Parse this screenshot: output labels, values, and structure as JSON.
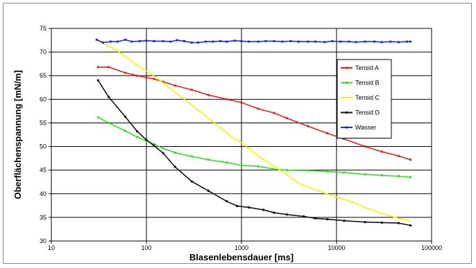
{
  "chart_data": {
    "type": "line",
    "title": "",
    "xlabel": "Blasenlebensdauer [ms]",
    "ylabel": "Oberflächenspannung [mN/m]",
    "xscale": "log",
    "xlim": [
      10,
      100000
    ],
    "ylim": [
      30,
      75
    ],
    "x_ticks": [
      "10",
      "100",
      "1000",
      "10000",
      "100000"
    ],
    "y_ticks": [
      "30",
      "35",
      "40",
      "45",
      "50",
      "55",
      "60",
      "65",
      "70",
      "75"
    ],
    "grid": "horizontal",
    "legend_position": "right",
    "series": [
      {
        "name": "Tensid A",
        "color": "#e8201c",
        "marker": true,
        "points": [
          [
            31,
            66.8
          ],
          [
            40,
            66.8
          ],
          [
            60,
            65.6
          ],
          [
            80,
            65.0
          ],
          [
            100,
            64.6
          ],
          [
            120,
            64.3
          ],
          [
            150,
            63.7
          ],
          [
            200,
            62.9
          ],
          [
            300,
            62.0
          ],
          [
            450,
            60.9
          ],
          [
            700,
            60.0
          ],
          [
            1000,
            59.3
          ],
          [
            1500,
            58.0
          ],
          [
            2200,
            57.1
          ],
          [
            3000,
            56.0
          ],
          [
            5000,
            54.3
          ],
          [
            8000,
            52.8
          ],
          [
            12000,
            51.6
          ],
          [
            20000,
            50.0
          ],
          [
            30000,
            48.9
          ],
          [
            45000,
            48.0
          ],
          [
            60000,
            47.2
          ]
        ]
      },
      {
        "name": "Tensid B",
        "color": "#33dd22",
        "marker": true,
        "points": [
          [
            31,
            56.2
          ],
          [
            40,
            55.0
          ],
          [
            60,
            53.3
          ],
          [
            80,
            52.0
          ],
          [
            100,
            51.2
          ],
          [
            120,
            50.5
          ],
          [
            150,
            49.6
          ],
          [
            200,
            48.7
          ],
          [
            300,
            47.9
          ],
          [
            450,
            47.2
          ],
          [
            700,
            46.6
          ],
          [
            1000,
            46.0
          ],
          [
            1500,
            45.8
          ],
          [
            2200,
            45.2
          ],
          [
            3000,
            45.0
          ],
          [
            5000,
            44.9
          ],
          [
            8000,
            44.7
          ],
          [
            12000,
            44.5
          ],
          [
            20000,
            44.1
          ],
          [
            30000,
            43.9
          ],
          [
            45000,
            43.7
          ],
          [
            60000,
            43.5
          ]
        ]
      },
      {
        "name": "Tensid C",
        "color": "#ffee00",
        "marker": false,
        "points": [
          [
            30,
            72.5
          ],
          [
            50,
            70.2
          ],
          [
            70,
            68.0
          ],
          [
            100,
            66.0
          ],
          [
            150,
            63.5
          ],
          [
            200,
            61.5
          ],
          [
            300,
            58.8
          ],
          [
            400,
            56.8
          ],
          [
            600,
            54.0
          ],
          [
            800,
            51.9
          ],
          [
            1000,
            50.8
          ],
          [
            1500,
            48.0
          ],
          [
            2200,
            45.8
          ],
          [
            3000,
            44.0
          ],
          [
            4000,
            42.2
          ],
          [
            6000,
            40.8
          ],
          [
            10000,
            39.3
          ],
          [
            15000,
            38.2
          ],
          [
            20000,
            37.1
          ],
          [
            30000,
            35.8
          ],
          [
            45000,
            34.8
          ],
          [
            60000,
            34.2
          ]
        ]
      },
      {
        "name": "Tensid D",
        "color": "#111111",
        "marker": true,
        "points": [
          [
            31,
            64.0
          ],
          [
            40,
            60.5
          ],
          [
            60,
            56.3
          ],
          [
            80,
            53.2
          ],
          [
            100,
            51.4
          ],
          [
            120,
            50.2
          ],
          [
            150,
            48.6
          ],
          [
            200,
            45.7
          ],
          [
            300,
            42.6
          ],
          [
            450,
            40.6
          ],
          [
            700,
            38.4
          ],
          [
            900,
            37.4
          ],
          [
            1200,
            37.1
          ],
          [
            1700,
            36.6
          ],
          [
            2200,
            36.0
          ],
          [
            3000,
            35.6
          ],
          [
            4500,
            35.2
          ],
          [
            6000,
            34.8
          ],
          [
            8000,
            34.6
          ],
          [
            12000,
            34.3
          ],
          [
            20000,
            34.0
          ],
          [
            30000,
            33.9
          ],
          [
            45000,
            33.8
          ],
          [
            60000,
            33.3
          ]
        ]
      },
      {
        "name": "Wasser",
        "color": "#1a2fc8",
        "marker": true,
        "points": [
          [
            30,
            72.6
          ],
          [
            35,
            72.0
          ],
          [
            42,
            72.2
          ],
          [
            50,
            72.2
          ],
          [
            60,
            72.6
          ],
          [
            70,
            72.2
          ],
          [
            85,
            72.3
          ],
          [
            100,
            72.4
          ],
          [
            120,
            72.3
          ],
          [
            150,
            72.3
          ],
          [
            180,
            72.2
          ],
          [
            210,
            72.5
          ],
          [
            250,
            72.3
          ],
          [
            300,
            72.0
          ],
          [
            350,
            72.0
          ],
          [
            420,
            72.2
          ],
          [
            500,
            72.2
          ],
          [
            600,
            72.3
          ],
          [
            700,
            72.2
          ],
          [
            850,
            72.4
          ],
          [
            1000,
            72.3
          ],
          [
            1200,
            72.2
          ],
          [
            1500,
            72.2
          ],
          [
            1800,
            72.3
          ],
          [
            2200,
            72.3
          ],
          [
            2700,
            72.2
          ],
          [
            3300,
            72.3
          ],
          [
            4000,
            72.2
          ],
          [
            5000,
            72.2
          ],
          [
            6000,
            72.2
          ],
          [
            7500,
            72.1
          ],
          [
            9000,
            72.3
          ],
          [
            11000,
            72.2
          ],
          [
            13500,
            72.2
          ],
          [
            16000,
            72.1
          ],
          [
            20000,
            72.2
          ],
          [
            25000,
            72.2
          ],
          [
            30000,
            72.1
          ],
          [
            37000,
            72.2
          ],
          [
            45000,
            72.1
          ],
          [
            55000,
            72.2
          ],
          [
            60000,
            72.2
          ]
        ]
      }
    ]
  }
}
